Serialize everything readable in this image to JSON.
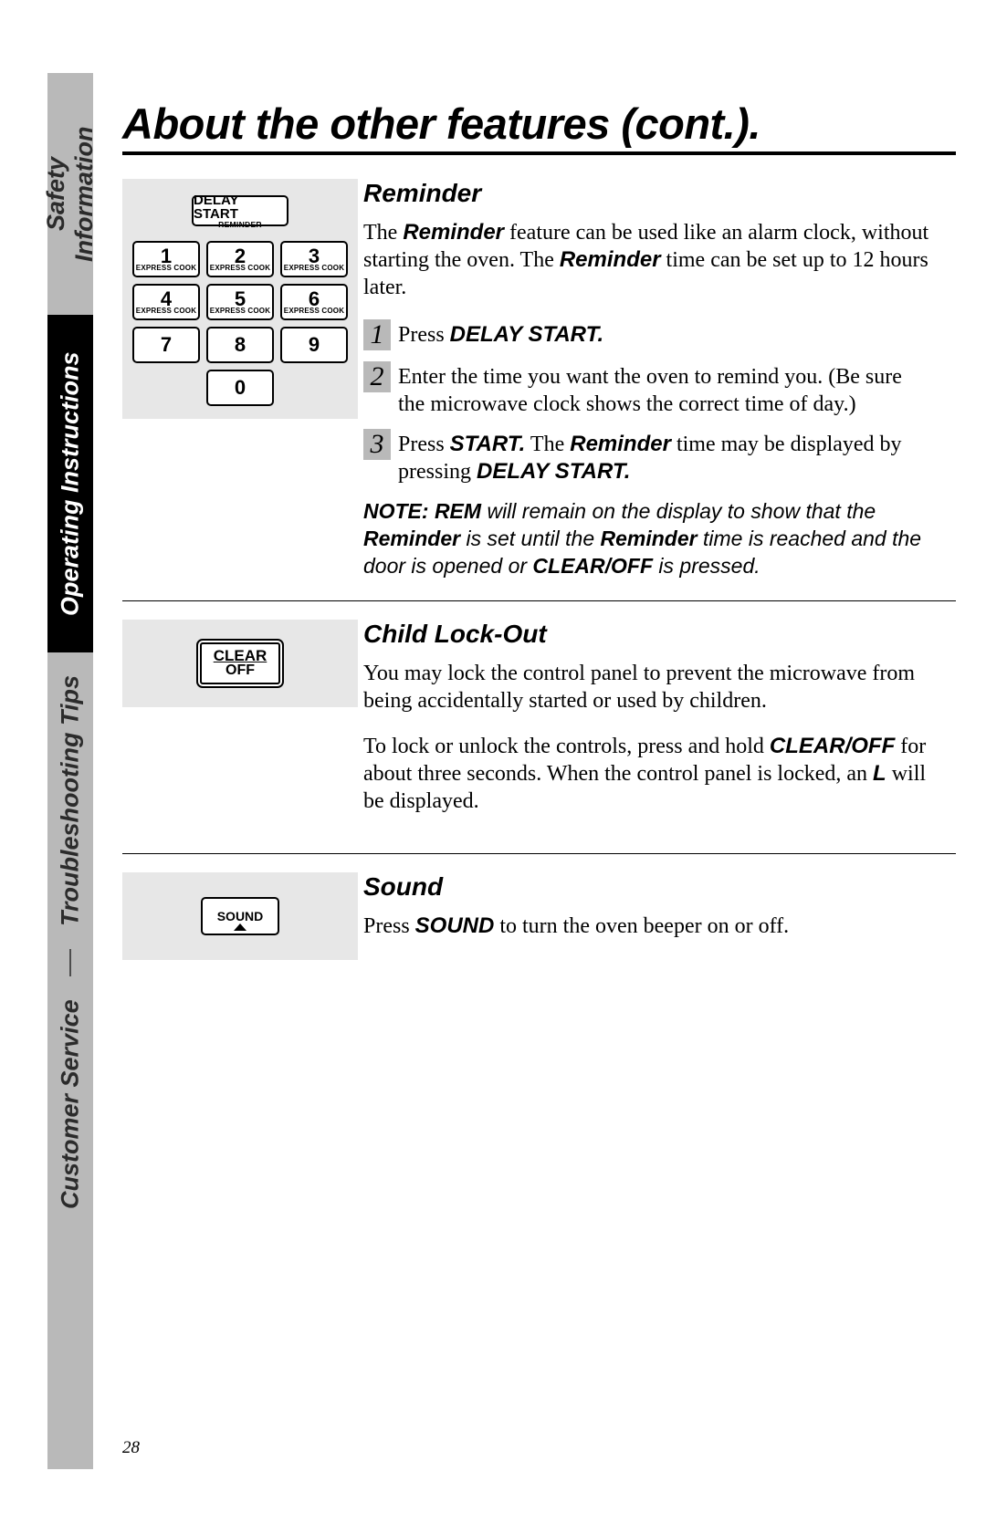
{
  "sidebar": {
    "tabs": [
      "Safety Information",
      "Operating Instructions",
      "Troubleshooting Tips",
      "Customer Service"
    ]
  },
  "title": "About the other features (cont.).",
  "page_number": "28",
  "keypad": {
    "delay_top": "DELAY START",
    "delay_sub": "REMINDER",
    "keys": [
      {
        "n": "1",
        "s": "EXPRESS COOK"
      },
      {
        "n": "2",
        "s": "EXPRESS COOK"
      },
      {
        "n": "3",
        "s": "EXPRESS COOK"
      },
      {
        "n": "4",
        "s": "EXPRESS COOK"
      },
      {
        "n": "5",
        "s": "EXPRESS COOK"
      },
      {
        "n": "6",
        "s": "EXPRESS COOK"
      },
      {
        "n": "7",
        "s": ""
      },
      {
        "n": "8",
        "s": ""
      },
      {
        "n": "9",
        "s": ""
      },
      {
        "n": "0",
        "s": ""
      }
    ]
  },
  "reminder": {
    "heading": "Reminder",
    "intro_pre": "The ",
    "intro_bold1": "Reminder",
    "intro_mid": " feature can be used like an alarm clock, without starting the oven. The ",
    "intro_bold2": "Reminder",
    "intro_post": " time can be set up to 12 hours later.",
    "step1_pre": "Press ",
    "step1_b": "DELAY START.",
    "step2": "Enter the time you want the oven to remind you. (Be sure the microwave clock shows the correct time of day.)",
    "step3_pre": "Press ",
    "step3_b1": "START.",
    "step3_mid": " The ",
    "step3_bi": "Reminder",
    "step3_mid2": " time may be displayed by pressing ",
    "step3_b2": "DELAY START.",
    "note_b1": "NOTE: REM",
    "note_1": " will remain on the display to show that the ",
    "note_b2": "Reminder",
    "note_2": " is set until the ",
    "note_b3": "Reminder",
    "note_3": " time is reached and the door is opened or ",
    "note_b4": "CLEAR/OFF",
    "note_4": " is pressed."
  },
  "lockout": {
    "heading": "Child Lock-Out",
    "btn_top": "CLEAR",
    "btn_sub": "OFF",
    "p1": "You may lock the control panel to prevent the microwave from being accidentally started or used by children.",
    "p2_pre": "To lock or unlock the controls, press and hold ",
    "p2_b": "CLEAR/OFF",
    "p2_mid": " for about three seconds. When the control panel is locked, an ",
    "p2_b2": "L",
    "p2_post": " will be displayed."
  },
  "sound": {
    "heading": "Sound",
    "btn": "SOUND",
    "p_pre": "Press ",
    "p_b": "SOUND",
    "p_post": " to turn the oven beeper on or off."
  }
}
